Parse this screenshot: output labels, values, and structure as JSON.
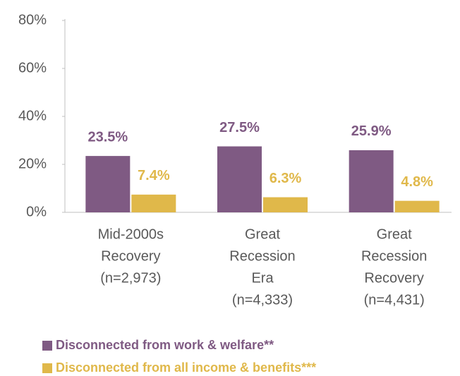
{
  "chart_data": {
    "type": "bar",
    "categories": [
      [
        "Mid-2000s",
        "Recovery",
        "(n=2,973)"
      ],
      [
        "Great",
        "Recession",
        "Era",
        "(n=4,333)"
      ],
      [
        "Great",
        "Recession",
        "Recovery",
        "(n=4,431)"
      ]
    ],
    "series": [
      {
        "name": "Disconnected from work & welfare**",
        "color": "#7f5a83",
        "values": [
          23.5,
          27.5,
          25.9
        ],
        "value_labels": [
          "23.5%",
          "27.5%",
          "25.9%"
        ]
      },
      {
        "name": "Disconnected from all income & benefits***",
        "color": "#e0b84a",
        "values": [
          7.4,
          6.3,
          4.8
        ],
        "value_labels": [
          "7.4%",
          "6.3%",
          "4.8%"
        ]
      }
    ],
    "ylim": [
      0,
      80
    ],
    "yticks": [
      {
        "value": 0,
        "label": "0%"
      },
      {
        "value": 20,
        "label": "20%"
      },
      {
        "value": 40,
        "label": "40%"
      },
      {
        "value": 60,
        "label": "60%"
      },
      {
        "value": 80,
        "label": "80%"
      }
    ],
    "grid": false
  }
}
